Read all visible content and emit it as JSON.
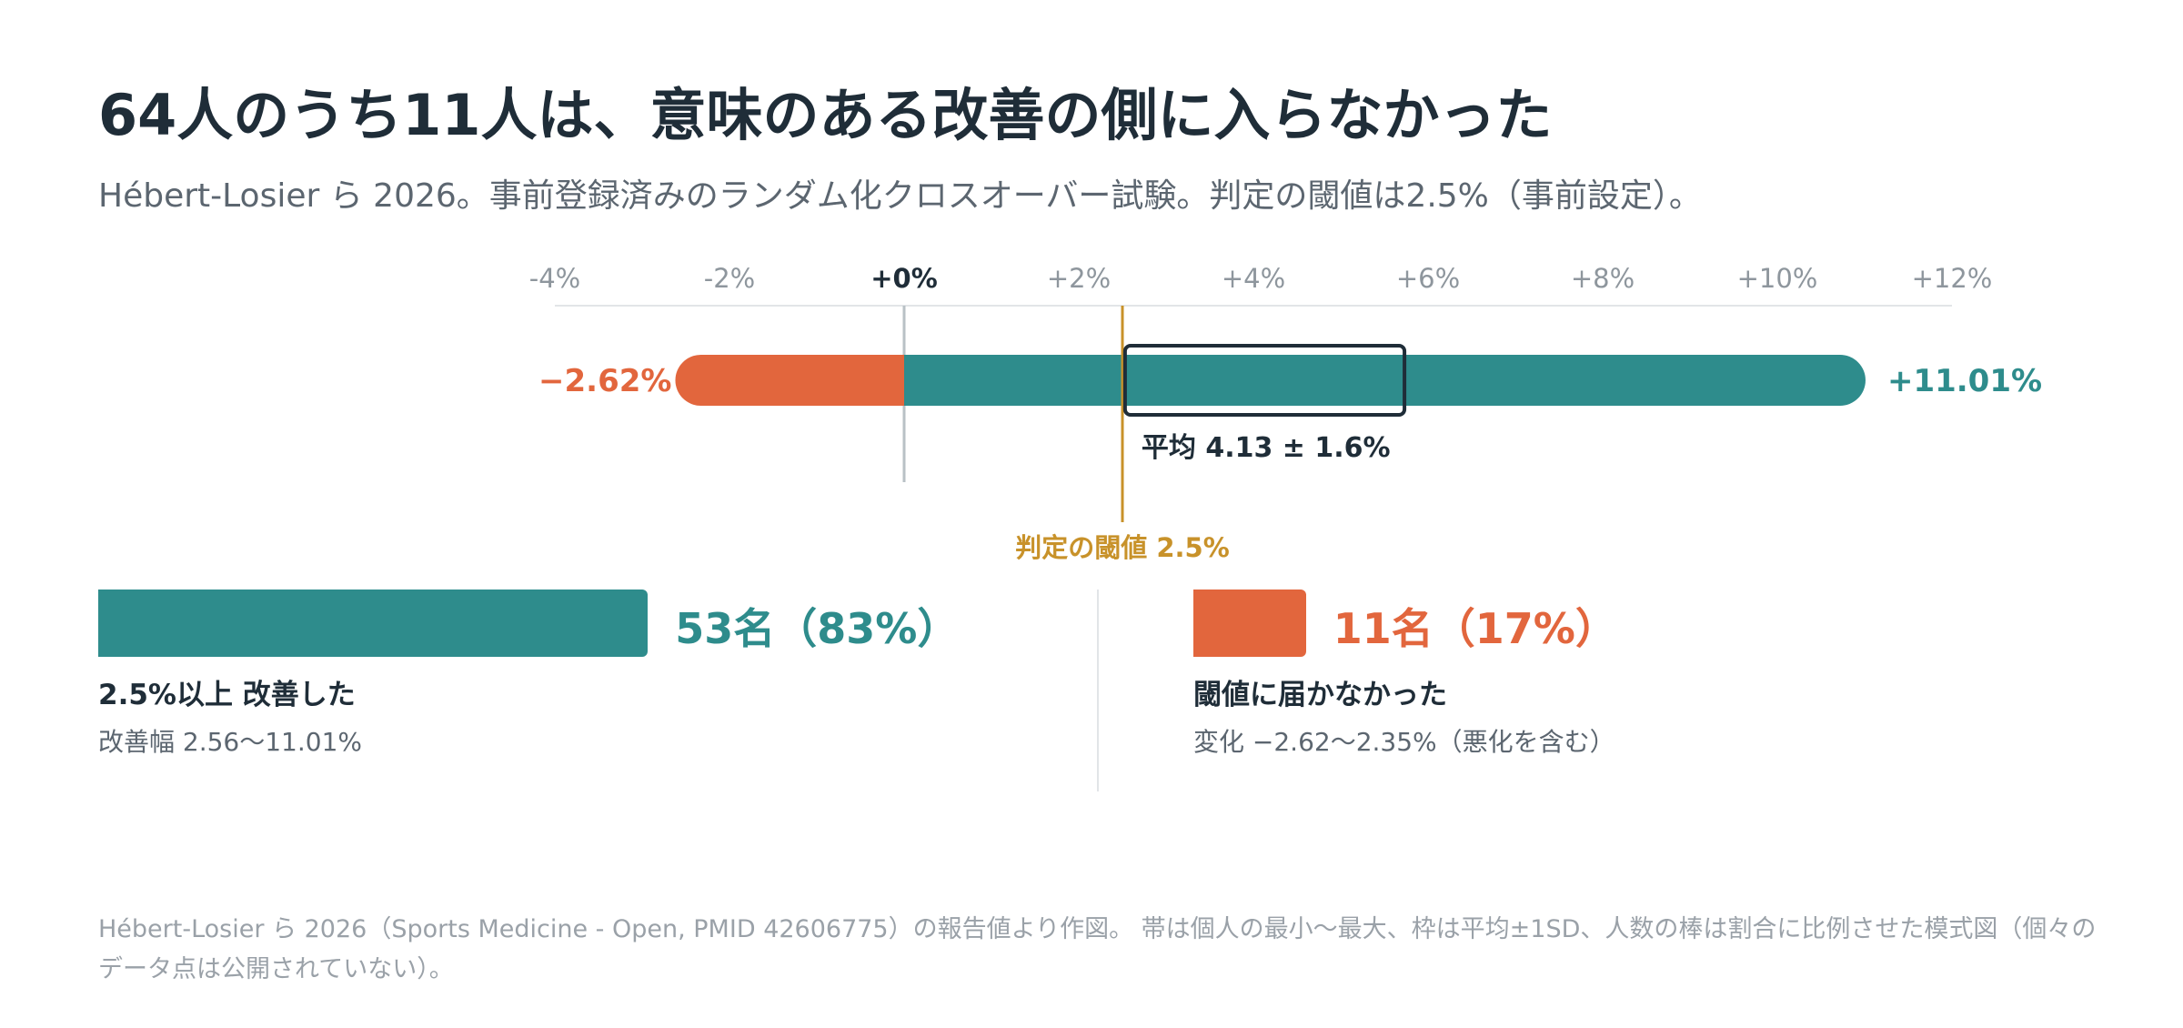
{
  "title": "64人のうち11人は、意味のある改善の側に入らなかった",
  "subtitle": "Hébert-Losier ら 2026。事前登録済みのランダム化クロスオーバー試験。判定の閾値は2.5%（事前設定）。",
  "colors": {
    "improved": "#2e8c8c",
    "not_improved": "#e2663d",
    "threshold": "#c8922a",
    "zero_line": "#b9c1c6",
    "text_dark": "#1f2d38",
    "text_muted": "#5c6670"
  },
  "chart_data": [
    {
      "type": "range",
      "x_axis": {
        "unit": "%",
        "range": [
          -4,
          12
        ],
        "ticks": [
          -4,
          -2,
          0,
          2,
          4,
          6,
          8,
          10,
          12
        ],
        "tick_labels": [
          "-4%",
          "-2%",
          "+0%",
          "+2%",
          "+4%",
          "+6%",
          "+8%",
          "+10%",
          "+12%"
        ]
      },
      "range_min": -2.62,
      "range_max": 11.01,
      "range_min_label": "−2.62%",
      "range_max_label": "+11.01%",
      "mean": 4.13,
      "sd": 1.6,
      "mean_label": "平均 4.13 ± 1.6%",
      "threshold": 2.5,
      "threshold_label": "判定の閾値 2.5%"
    },
    {
      "type": "bar",
      "total": 64,
      "groups": [
        {
          "count": 53,
          "percent": 83,
          "value_label": "53名（83%）",
          "label": "2.5%以上 改善した",
          "detail": "改善幅 2.56〜11.01%"
        },
        {
          "count": 11,
          "percent": 17,
          "value_label": "11名（17%）",
          "label": "閾値に届かなかった",
          "detail": "変化 −2.62〜2.35%（悪化を含む）"
        }
      ]
    }
  ],
  "footnote": "Hébert-Losier ら 2026（Sports Medicine - Open, PMID 42606775）の報告値より作図。 帯は個人の最小〜最大、枠は平均±1SD、人数の棒は割合に比例させた模式図（個々のデータ点は公開されていない）。"
}
